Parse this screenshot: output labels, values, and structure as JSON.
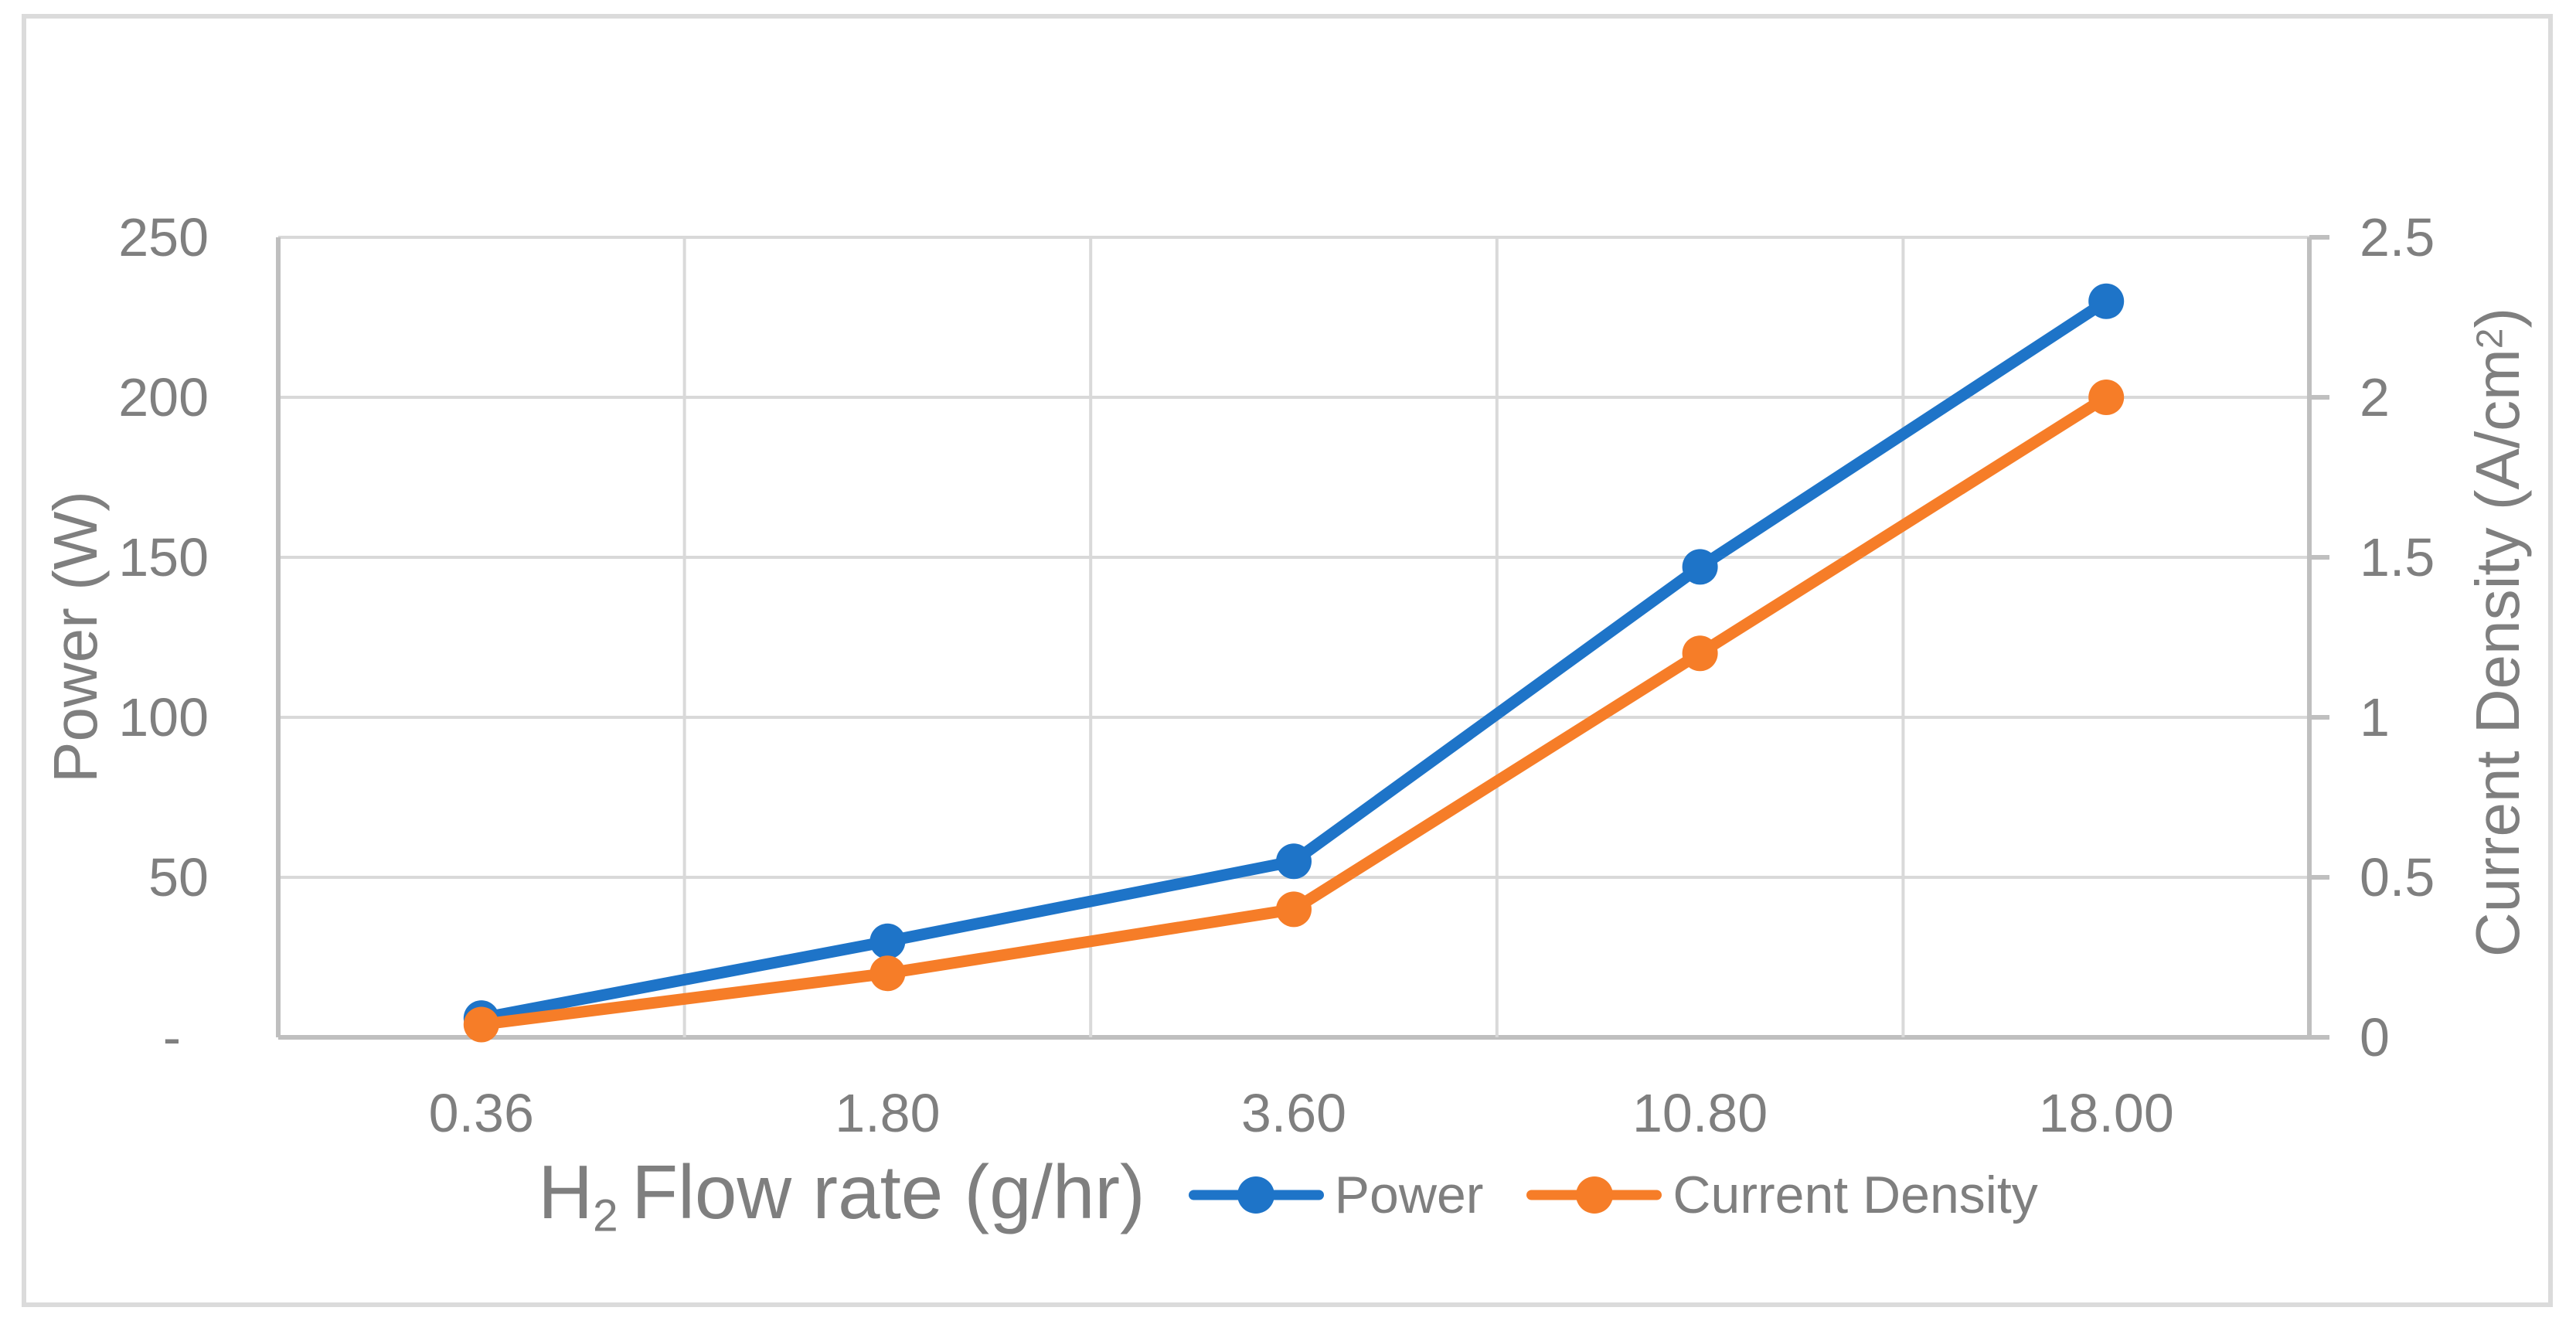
{
  "colors": {
    "grid": "#d9d9d9",
    "axis": "#bfbfbf",
    "text": "#7f7f7f",
    "border": "#dbdbdb"
  },
  "chart_data": {
    "type": "line",
    "categories": [
      "0.36",
      "1.80",
      "3.60",
      "10.80",
      "18.00"
    ],
    "series": [
      {
        "name": "Power",
        "axis": "left",
        "color": "#1e74c8",
        "values": [
          6,
          30,
          55,
          147,
          230
        ]
      },
      {
        "name": "Current Density",
        "axis": "right",
        "color": "#f67d28",
        "values": [
          0.04,
          0.2,
          0.4,
          1.2,
          2.0
        ]
      }
    ],
    "x_axis": {
      "title": "H₂ Flow rate (g/hr)",
      "title_h": "H",
      "title_sub": "2",
      "title_rest": "Flow rate (g/hr)"
    },
    "left_axis": {
      "title": "Power (W)",
      "min": 0,
      "max": 250,
      "tick_labels": [
        "250",
        "200",
        "150",
        "100",
        "50",
        "-"
      ]
    },
    "right_axis": {
      "title": "Current Density (A/cm²)",
      "title_base": "Current Density (A/cm",
      "title_sup": "2",
      "title_close": ")",
      "min": 0,
      "max": 2.5,
      "tick_labels": [
        "2.5",
        "2",
        "1.5",
        "1",
        "0.5",
        "0"
      ]
    },
    "legend": [
      "Power",
      "Current Density"
    ],
    "legend_position": "bottom",
    "grid": true
  }
}
